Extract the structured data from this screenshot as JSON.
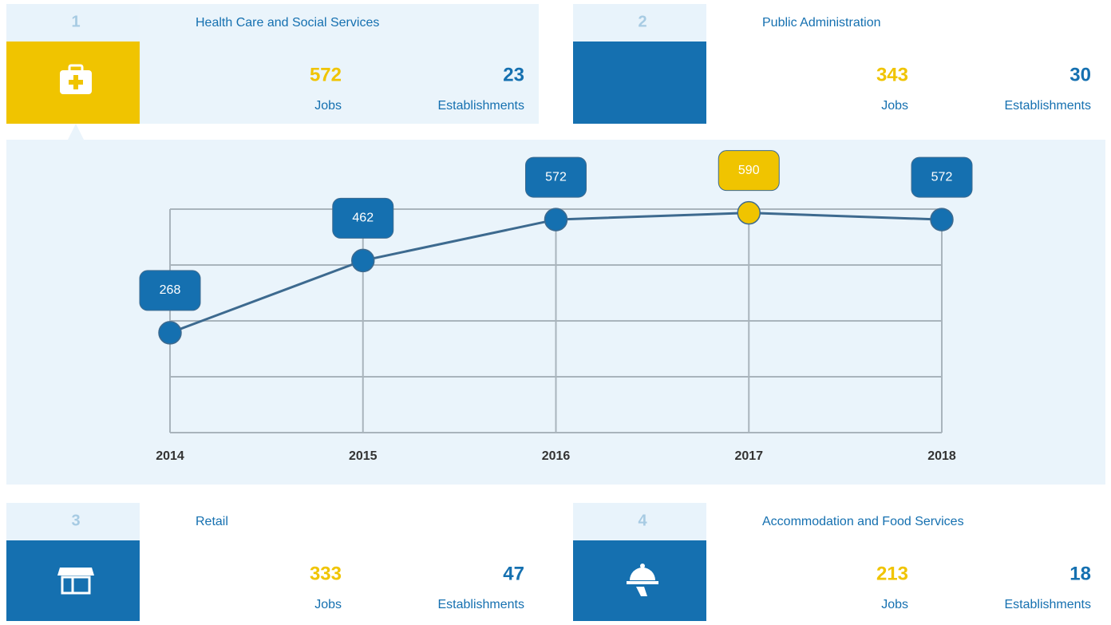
{
  "cards": [
    {
      "rank": "1",
      "title": "Health Care and Social Services",
      "jobs": "572",
      "jobs_label": "Jobs",
      "establishments": "23",
      "establishments_label": "Establishments",
      "color": "#f0c400"
    },
    {
      "rank": "2",
      "title": "Public Administration",
      "jobs": "343",
      "jobs_label": "Jobs",
      "establishments": "30",
      "establishments_label": "Establishments",
      "color": "#1570b0"
    },
    {
      "rank": "3",
      "title": "Retail",
      "jobs": "333",
      "jobs_label": "Jobs",
      "establishments": "47",
      "establishments_label": "Establishments",
      "color": "#1570b0"
    },
    {
      "rank": "4",
      "title": "Accommodation and Food Services",
      "jobs": "213",
      "jobs_label": "Jobs",
      "establishments": "18",
      "establishments_label": "Establishments",
      "color": "#1570b0"
    }
  ],
  "chart_data": {
    "type": "line",
    "categories": [
      "2014",
      "2015",
      "2016",
      "2017",
      "2018"
    ],
    "values": [
      268,
      462,
      572,
      590,
      572
    ],
    "color": "#3d6a8f",
    "point_colors": [
      "#1570b0",
      "#1570b0",
      "#1570b0",
      "#f0c400",
      "#1570b0"
    ],
    "ylim": [
      0,
      600
    ],
    "ygrid": [
      0,
      150,
      300,
      450,
      600
    ],
    "grid": true
  }
}
